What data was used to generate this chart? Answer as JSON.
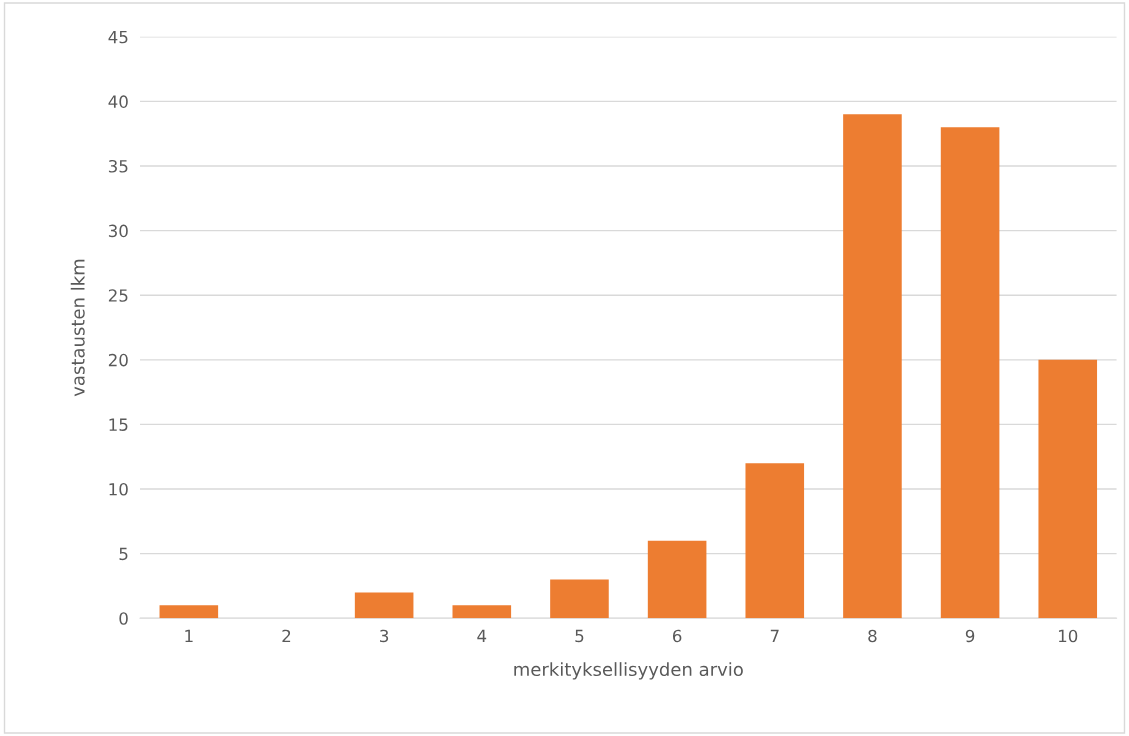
{
  "chart_data": {
    "type": "bar",
    "xlabel": "merkityksellisyyden arvio",
    "ylabel": "vastausten lkm",
    "categories": [
      "1",
      "2",
      "3",
      "4",
      "5",
      "6",
      "7",
      "8",
      "9",
      "10"
    ],
    "values": [
      1,
      0,
      2,
      1,
      3,
      6,
      12,
      39,
      38,
      20
    ],
    "color": "#ed7d31",
    "ylim": [
      0,
      45
    ],
    "yticks": [
      0,
      5,
      10,
      15,
      20,
      25,
      30,
      35,
      40,
      45
    ],
    "grid": "y",
    "legend": false
  }
}
